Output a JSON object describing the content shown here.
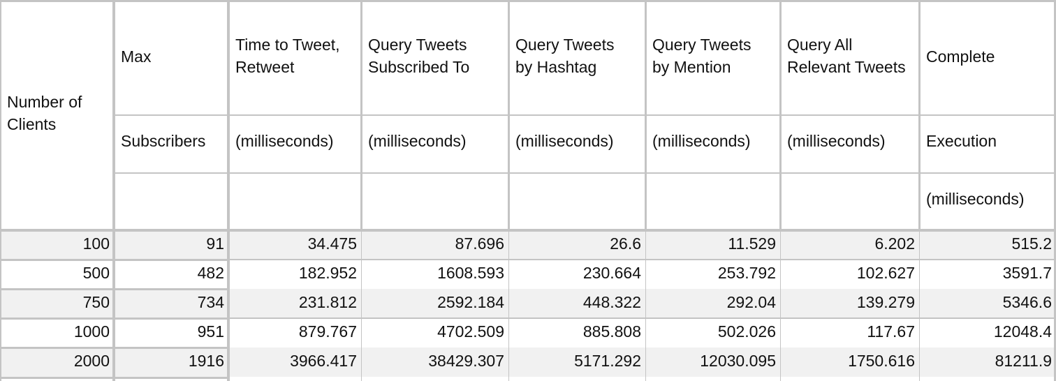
{
  "header": {
    "number_of_clients": [
      "Number of",
      "Clients"
    ],
    "max_subscribers": {
      "line1": "Max",
      "line2": "Subscribers"
    },
    "time_to_tweet": {
      "line1a": "Time to Tweet,",
      "line1b": "Retweet",
      "line2": "(milliseconds)"
    },
    "query_subscribed": {
      "line1a": "Query Tweets",
      "line1b": "Subscribed To",
      "line2": "(milliseconds)"
    },
    "query_hashtag": {
      "line1a": "Query Tweets",
      "line1b": "by Hashtag",
      "line2": "(milliseconds)"
    },
    "query_mention": {
      "line1a": "Query Tweets",
      "line1b": "by Mention",
      "line2": "(milliseconds)"
    },
    "query_all": {
      "line1a": "Query All",
      "line1b": "Relevant Tweets",
      "line2": "(milliseconds)"
    },
    "complete": {
      "line1": "Complete",
      "line2": "Execution",
      "line3": "(milliseconds)"
    }
  },
  "rows": [
    [
      "100",
      "91",
      "34.475",
      "87.696",
      "26.6",
      "11.529",
      "6.202",
      "515.2"
    ],
    [
      "500",
      "482",
      "182.952",
      "1608.593",
      "230.664",
      "253.792",
      "102.627",
      "3591.7"
    ],
    [
      "750",
      "734",
      "231.812",
      "2592.184",
      "448.322",
      "292.04",
      "139.279",
      "5346.6"
    ],
    [
      "1000",
      "951",
      "879.767",
      "4702.509",
      "885.808",
      "502.026",
      "117.67",
      "12048.4"
    ],
    [
      "2000",
      "1916",
      "3966.417",
      "38429.307",
      "5171.292",
      "12030.095",
      "1750.616",
      "81211.9"
    ]
  ],
  "colors": {
    "grid": "#c4c4c4",
    "border": "#bdbdbd",
    "band": "#f1f1f1"
  }
}
